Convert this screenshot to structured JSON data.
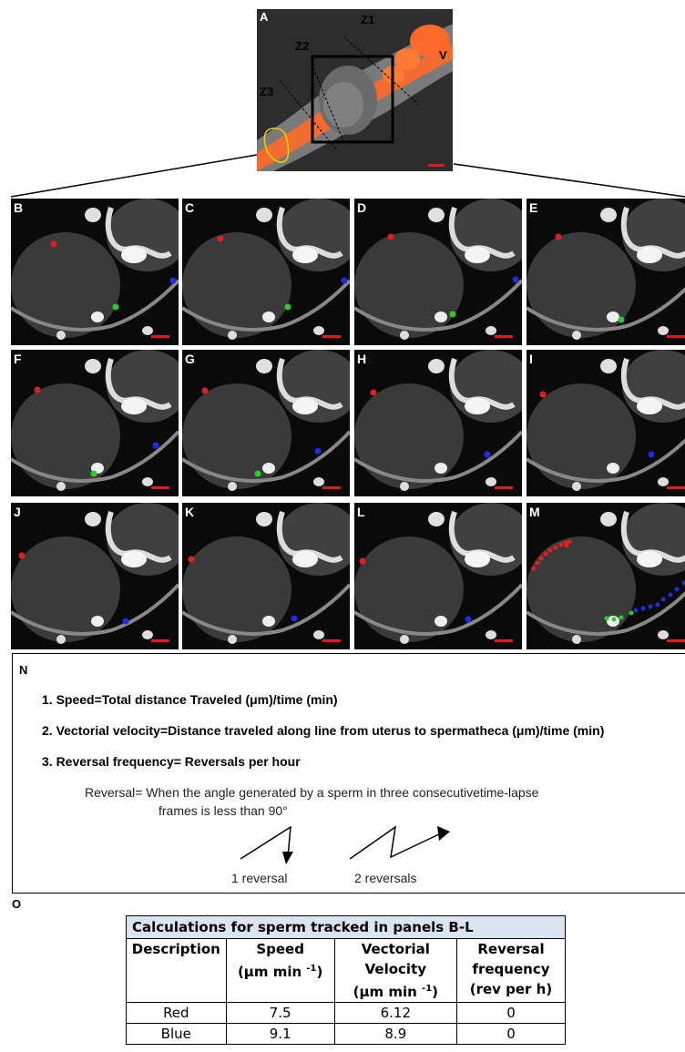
{
  "panelA": {
    "label": "A",
    "zone_labels": [
      "Z1",
      "Z2",
      "Z3"
    ],
    "v_label": "V"
  },
  "tiles": [
    {
      "label": "B"
    },
    {
      "label": "C"
    },
    {
      "label": "D"
    },
    {
      "label": "E"
    },
    {
      "label": "F"
    },
    {
      "label": "G"
    },
    {
      "label": "H"
    },
    {
      "label": "I"
    },
    {
      "label": "J"
    },
    {
      "label": "K"
    },
    {
      "label": "L"
    },
    {
      "label": "M"
    }
  ],
  "colors": {
    "red_sperm": "#e02020",
    "blue_sperm": "#1a2fe0",
    "green_sperm": "#2ccb2c",
    "scalebar": "#e01b1b",
    "fluorescence": "#ff6a2a",
    "gonad_outline": "#f0d000"
  },
  "panelN": {
    "label": "N",
    "items": [
      "1. Speed=Total distance Traveled (μm)/time (min)",
      "2. Vectorial velocity=Distance traveled along line from uterus to spermatheca (μm)/time (min)",
      "3. Reversal frequency= Reversals per hour"
    ],
    "definition_line1": "Reversal= When the angle generated by a sperm in three consecutivetime-lapse",
    "definition_line2": "frames is less than 90°",
    "example1": "1 reversal",
    "example2": "2 reversals"
  },
  "panelO": {
    "label": "O",
    "caption": "Calculations for sperm tracked in panels B-L",
    "headers": {
      "description": "Description",
      "speed": "Speed",
      "speed_unit": "(µm min",
      "vv1": "Vectorial",
      "vv2": "Velocity",
      "vv_unit": "(µm min",
      "exp": "-1",
      "rf1": "Reversal",
      "rf2": "frequency",
      "rf3": "(rev per h)"
    },
    "rows": [
      {
        "name": "Red",
        "speed": "7.5",
        "vv": "6.12",
        "rf": "0"
      },
      {
        "name": "Blue",
        "speed": "9.1",
        "vv": "8.9",
        "rf": "0"
      }
    ]
  }
}
